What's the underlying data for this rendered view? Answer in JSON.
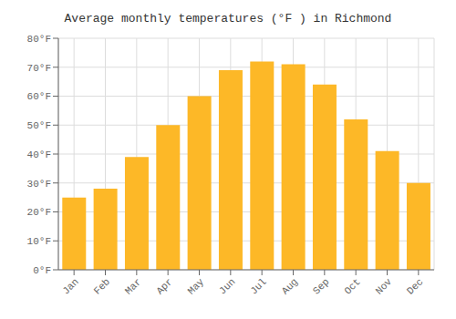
{
  "chart_data": {
    "type": "bar",
    "title": "Average monthly temperatures (°F ) in Richmond",
    "categories": [
      "Jan",
      "Feb",
      "Mar",
      "Apr",
      "May",
      "Jun",
      "Jul",
      "Aug",
      "Sep",
      "Oct",
      "Nov",
      "Dec"
    ],
    "values": [
      25,
      28,
      39,
      50,
      60,
      69,
      72,
      71,
      64,
      52,
      41,
      30
    ],
    "color": "#FDB827",
    "ylim": [
      0,
      80
    ],
    "yticks": [
      {
        "value": 0,
        "label": "0°F"
      },
      {
        "value": 10,
        "label": "10°F"
      },
      {
        "value": 20,
        "label": "20°F"
      },
      {
        "value": 30,
        "label": "30°F"
      },
      {
        "value": 40,
        "label": "40°F"
      },
      {
        "value": 50,
        "label": "50°F"
      },
      {
        "value": 60,
        "label": "60°F"
      },
      {
        "value": 70,
        "label": "70°F"
      },
      {
        "value": 80,
        "label": "80°F"
      }
    ],
    "grid": true
  }
}
